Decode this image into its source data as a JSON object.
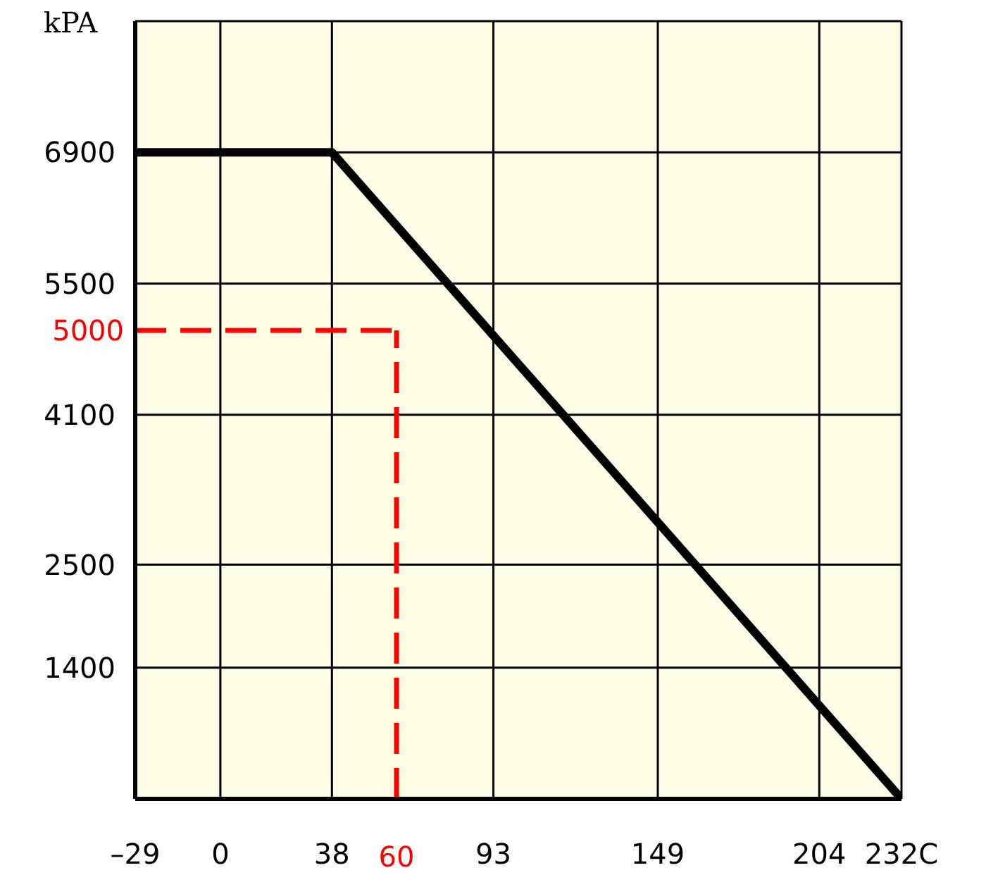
{
  "chart_data": {
    "type": "line",
    "ylabel": "kPA",
    "x": [
      -29,
      38,
      232
    ],
    "series": [
      {
        "color": "#000000",
        "values": [
          6900,
          6900,
          0
        ]
      }
    ],
    "xlim": [
      -29,
      232
    ],
    "xticks": [
      {
        "value": -29,
        "label": "–29"
      },
      0,
      38,
      93,
      149,
      204,
      {
        "value": 232,
        "label": "232C"
      }
    ],
    "ylim": [
      0,
      8300
    ],
    "yticks": [
      1400,
      2500,
      4100,
      5500,
      6900
    ],
    "grid": true,
    "ref_lines": [
      {
        "axis": "x",
        "value": 60,
        "label": "60",
        "color": "#ff0000",
        "line_style": "dashed"
      },
      {
        "axis": "y",
        "value": 5000,
        "label": "5000",
        "color": "#ff0000",
        "line_style": "dashed"
      }
    ]
  }
}
